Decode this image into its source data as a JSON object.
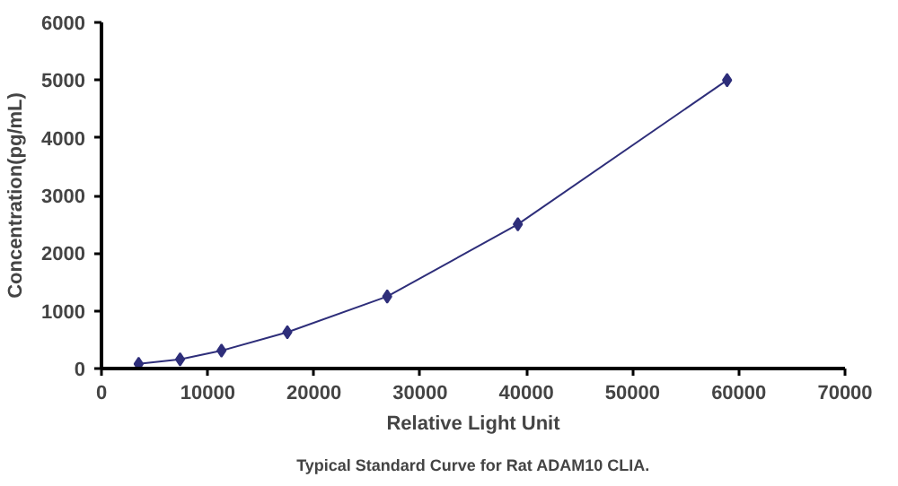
{
  "chart_data": {
    "type": "line",
    "xlabel": "Relative Light Unit",
    "ylabel": "Concentration(pg/mL)",
    "annotations": [
      "Typical Standard Curve for Rat ADAM10 CLIA."
    ],
    "x": [
      3500,
      7400,
      11300,
      17500,
      26900,
      39200,
      58900
    ],
    "series": [
      {
        "color": "#2e2e7a",
        "values": [
          80,
          160,
          310,
          630,
          1250,
          2500,
          5000
        ]
      }
    ],
    "xlim": [
      0,
      70000
    ],
    "ylim": [
      0,
      6000
    ],
    "xticks": [
      0,
      10000,
      20000,
      30000,
      40000,
      50000,
      60000,
      70000
    ],
    "yticks": [
      0,
      1000,
      2000,
      3000,
      4000,
      5000,
      6000
    ],
    "grid": false,
    "marker": "diamond",
    "line_style": "solid"
  }
}
